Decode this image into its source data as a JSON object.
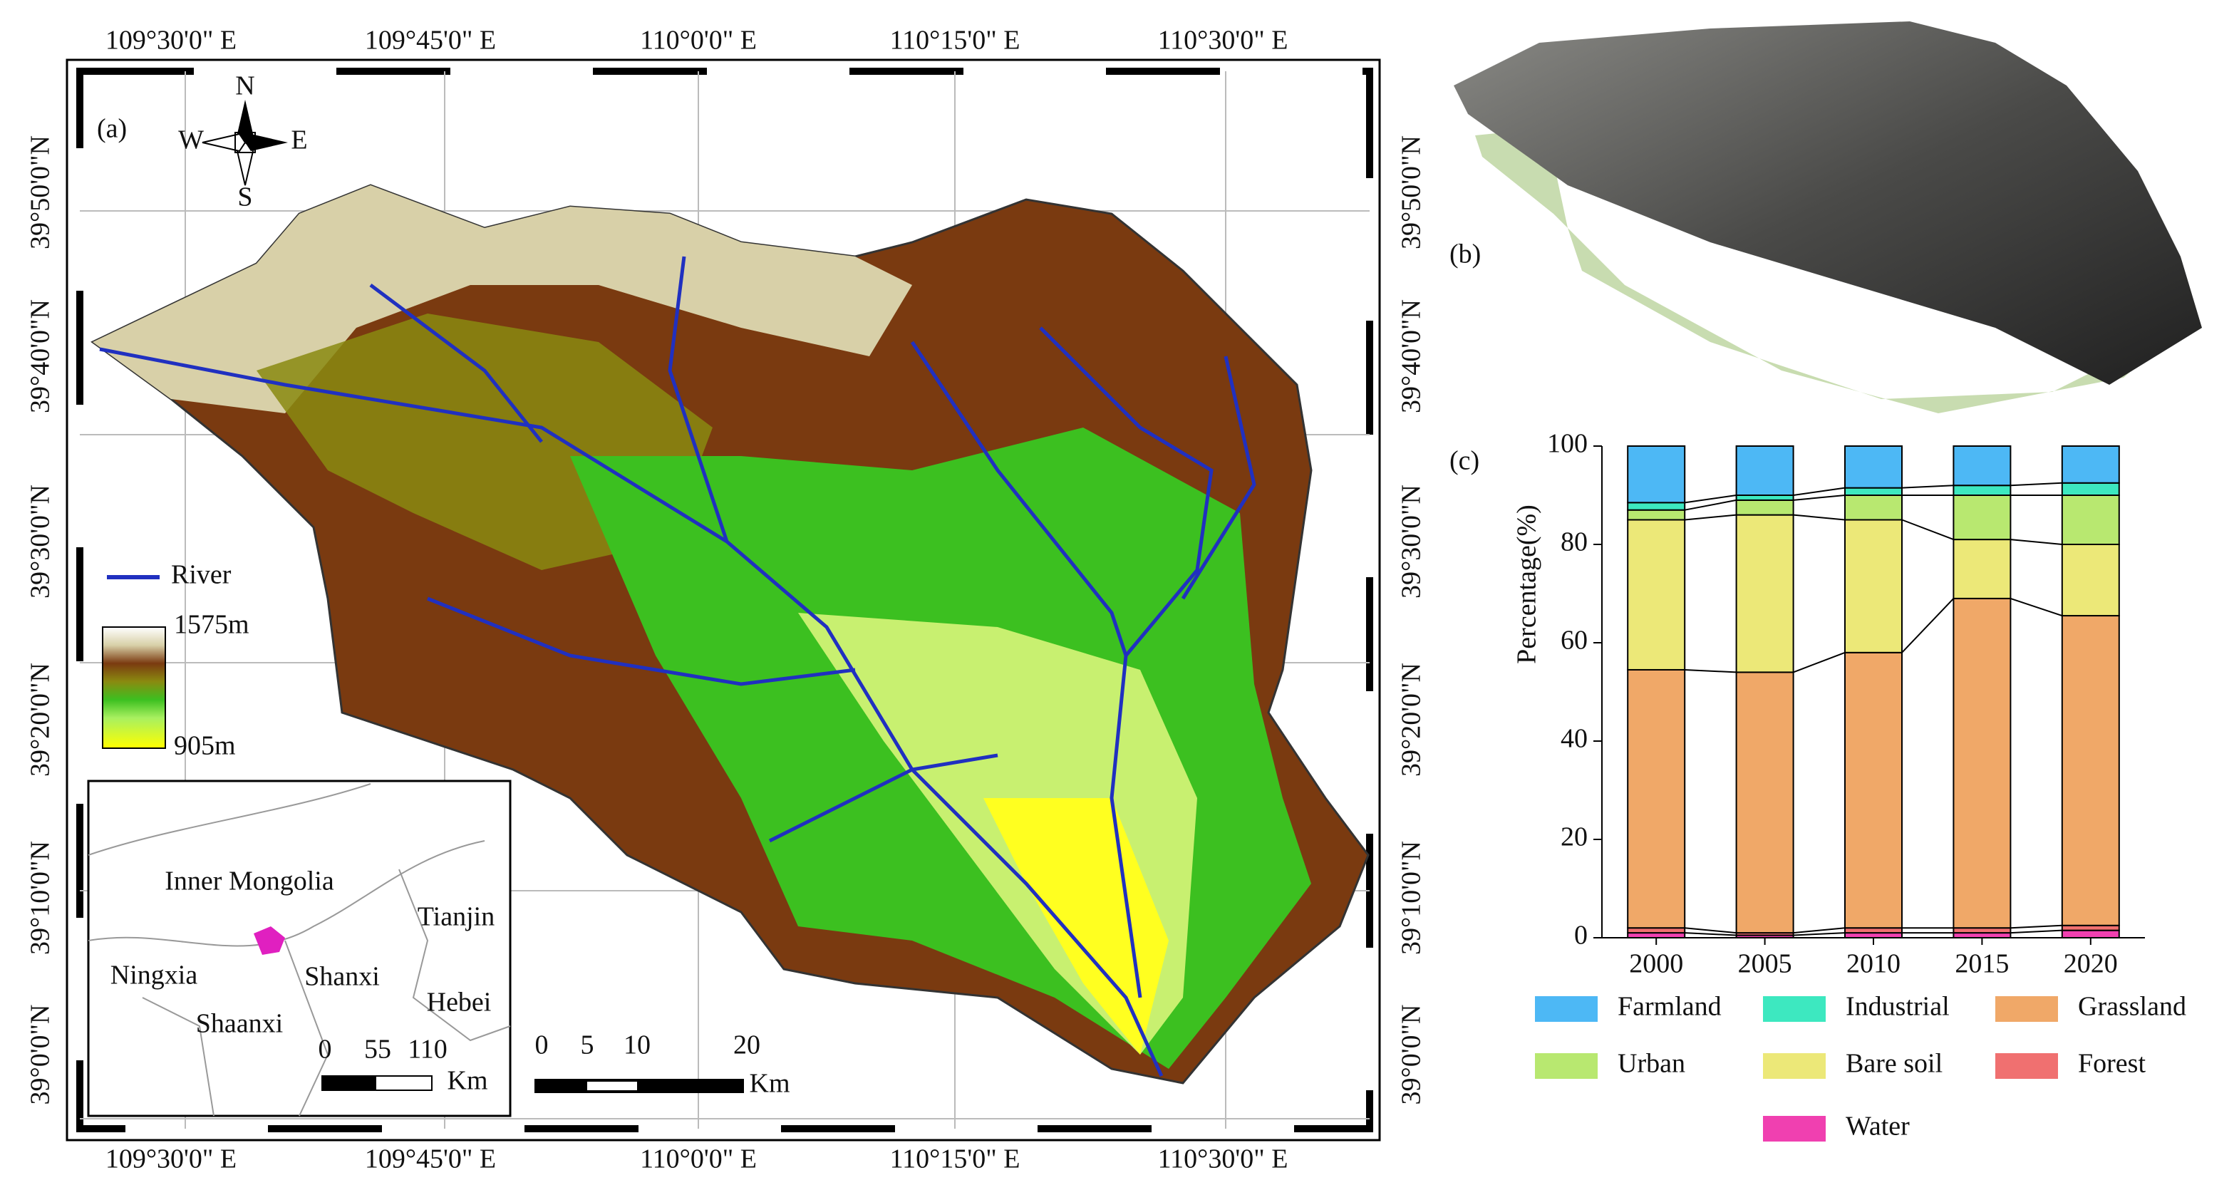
{
  "panels": {
    "a": "(a)",
    "b": "(b)",
    "c": "(c)"
  },
  "map": {
    "lon_ticks": [
      "109°30'0\" E",
      "109°45'0\" E",
      "110°0'0\" E",
      "110°15'0\" E",
      "110°30'0\" E"
    ],
    "lat_ticks": [
      "39°50'0\"N",
      "39°40'0\"N",
      "39°30'0\"N",
      "39°20'0\"N",
      "39°10'0\"N",
      "39°0'0\"N"
    ],
    "compass": {
      "n": "N",
      "s": "S",
      "w": "W",
      "e": "E"
    },
    "legend": {
      "river": "River",
      "max": "1575m",
      "min": "905m"
    },
    "inset": {
      "regions": [
        "Inner Mongolia",
        "Tianjin",
        "Ningxia",
        "Shanxi",
        "Hebei",
        "Shaanxi"
      ],
      "scale": [
        "0",
        "55",
        "110"
      ],
      "unit": "Km"
    },
    "scale": {
      "ticks": [
        "0",
        "5",
        "10",
        "20"
      ],
      "unit": "Km"
    }
  },
  "chart_data": {
    "type": "stacked_bar",
    "y_label": "Percentage(%)",
    "categories": [
      "2000",
      "2005",
      "2010",
      "2015",
      "2020"
    ],
    "ylim": [
      0,
      100
    ],
    "yticks": [
      0,
      20,
      40,
      60,
      80,
      100
    ],
    "series": [
      {
        "name": "Water",
        "color": "#f040b0",
        "values": [
          1,
          0.5,
          1,
          1,
          1.5
        ]
      },
      {
        "name": "Forest",
        "color": "#f07070",
        "values": [
          1,
          0.5,
          1,
          1,
          1
        ]
      },
      {
        "name": "Grassland",
        "color": "#f0a868",
        "values": [
          52.5,
          53,
          56,
          67,
          63
        ]
      },
      {
        "name": "Bare soil",
        "color": "#ece878",
        "values": [
          30.5,
          32,
          27,
          12,
          14.5
        ]
      },
      {
        "name": "Urban",
        "color": "#b8e870",
        "values": [
          2,
          3,
          5,
          9,
          10
        ]
      },
      {
        "name": "Industrial",
        "color": "#3de8c0",
        "values": [
          1.5,
          1,
          1.5,
          2,
          2.5
        ]
      },
      {
        "name": "Farmland",
        "color": "#4db8f5",
        "values": [
          11.5,
          10,
          8.5,
          8,
          7.5
        ]
      }
    ]
  }
}
